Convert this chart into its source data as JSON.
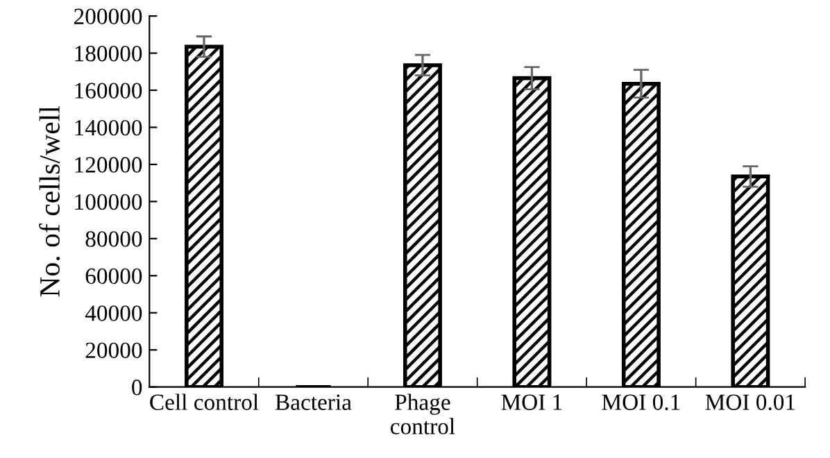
{
  "chart_data": {
    "type": "bar",
    "ylabel": "No. of cells/well",
    "categories": [
      "Cell control",
      "Bacteria",
      "Phage\ncontrol",
      "MOI 1",
      "MOI 0.1",
      "MOI 0.01"
    ],
    "values": [
      183500,
      0,
      173500,
      166500,
      163500,
      113500
    ],
    "errors": [
      5500,
      null,
      5500,
      6000,
      7500,
      5500
    ],
    "color": "#000000",
    "ylim": [
      0,
      200000
    ],
    "yticks": [
      0,
      20000,
      40000,
      60000,
      80000,
      100000,
      120000,
      140000,
      160000,
      180000,
      200000
    ],
    "grid": false,
    "legend": false
  }
}
